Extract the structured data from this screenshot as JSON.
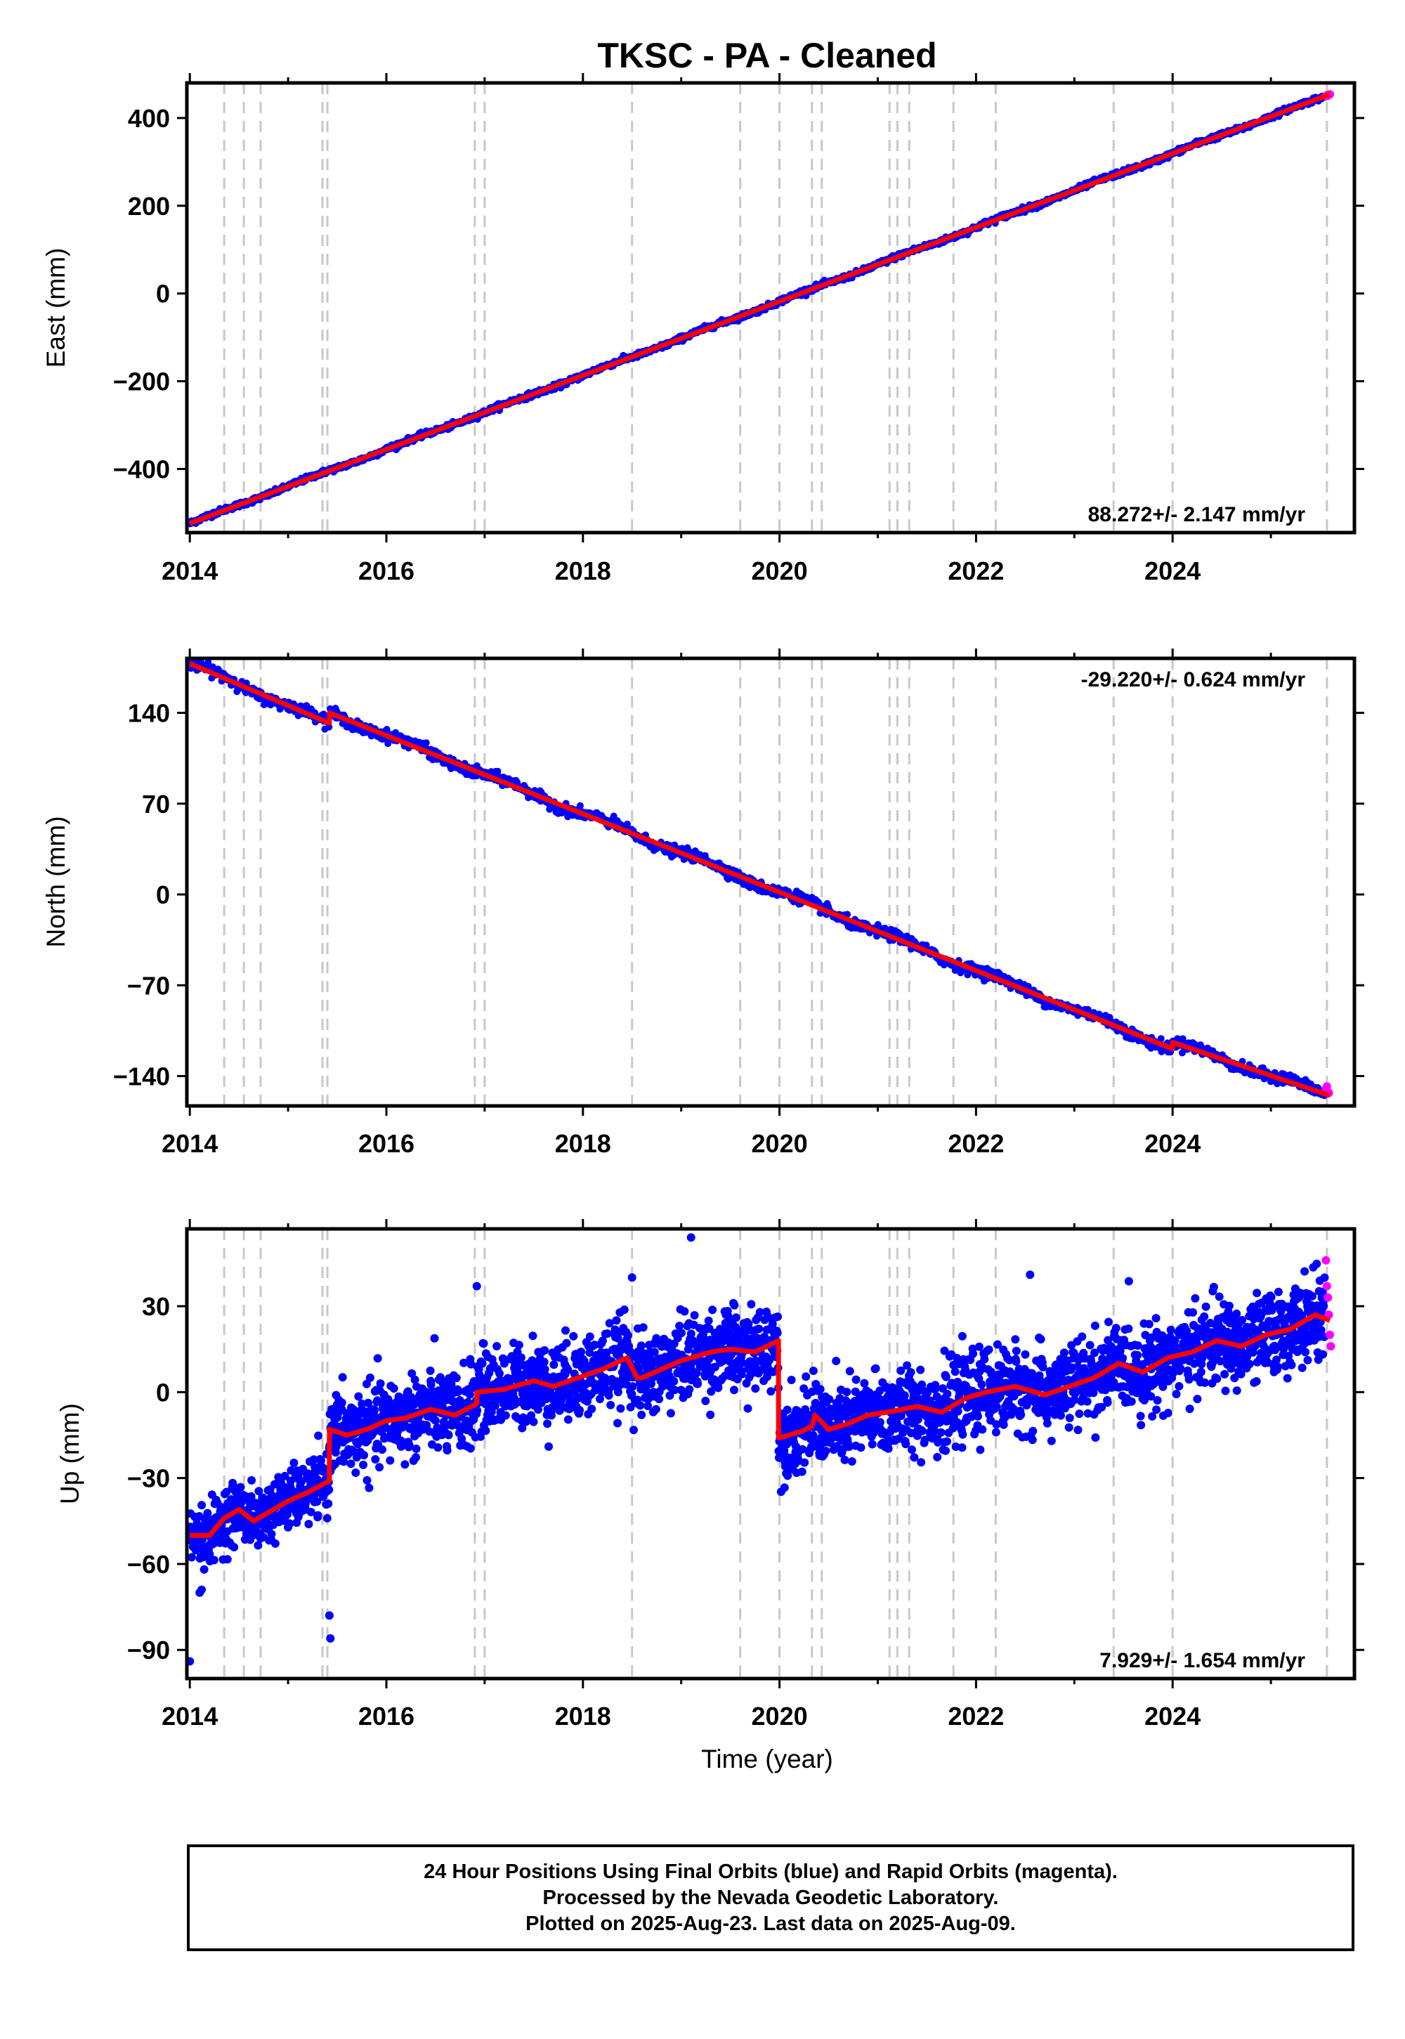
{
  "colors": {
    "final_points": "#0000ff",
    "rapid_points": "#ff00ff",
    "model_line": "#ff0000",
    "event_lines": "#c8c8c8",
    "frame": "#000000"
  },
  "chart_data": [
    {
      "type": "scatter",
      "title": "TKSC  - PA - Cleaned",
      "xlabel": "",
      "ylabel": "East (mm)",
      "xlim": [
        2013.97,
        2025.85
      ],
      "ylim": [
        -545,
        480
      ],
      "xticks": [
        "2014",
        "2016",
        "2018",
        "2020",
        "2022",
        "2024"
      ],
      "yticks": [
        "400",
        "200",
        "0",
        "−200",
        "−400"
      ],
      "rate_label": "88.272+/- 2.147 mm/yr",
      "rate_position": "bottom-right",
      "grid": false,
      "series": [
        {
          "name": "Final Orbits",
          "color": "blue",
          "x_range": [
            2014.0,
            2025.55
          ],
          "linear": {
            "y_start": -524,
            "y_end": 449
          },
          "steps": [],
          "seasonal_amplitude": 2.0,
          "noise": 3.0
        },
        {
          "name": "Rapid Orbits",
          "color": "magenta",
          "x": [
            2025.56,
            2025.57,
            2025.58,
            2025.59,
            2025.6
          ],
          "y": [
            450,
            452,
            451,
            453,
            454
          ]
        }
      ],
      "trend_line": {
        "x": [
          2014.0,
          2025.6
        ],
        "y": [
          -524,
          454
        ]
      },
      "event_years": [
        2014.35,
        2014.55,
        2014.72,
        2015.35,
        2015.4,
        2016.9,
        2017.0,
        2018.5,
        2019.6,
        2020.0,
        2020.33,
        2020.43,
        2021.12,
        2021.2,
        2021.32,
        2021.77,
        2022.2,
        2023.4,
        2024.0,
        2025.57
      ]
    },
    {
      "type": "scatter",
      "title": "",
      "xlabel": "",
      "ylabel": "North (mm)",
      "xlim": [
        2013.97,
        2025.85
      ],
      "ylim": [
        -163,
        182
      ],
      "xticks": [
        "2014",
        "2016",
        "2018",
        "2020",
        "2022",
        "2024"
      ],
      "yticks": [
        "140",
        "70",
        "0",
        "−70",
        "−140"
      ],
      "rate_label": "-29.220+/- 0.624 mm/yr",
      "rate_position": "top-right",
      "grid": false,
      "series": [
        {
          "name": "Final Orbits",
          "color": "blue",
          "x_range": [
            2014.0,
            2025.55
          ],
          "linear": {
            "y_start": 178,
            "y_end": -148
          },
          "steps": [
            {
              "x": 2015.42,
              "dy": 8
            },
            {
              "x": 2024.0,
              "dy": 5
            }
          ],
          "seasonal_amplitude": 2.0,
          "noise": 2.0
        },
        {
          "name": "Rapid Orbits",
          "color": "magenta",
          "x": [
            2025.56,
            2025.57,
            2025.58,
            2025.59
          ],
          "y": [
            -150,
            -148,
            -152,
            -153
          ]
        }
      ],
      "trend_line": {
        "x": [
          2014.0,
          2015.42,
          2015.42,
          2024.0,
          2024.0,
          2025.6
        ],
        "y": [
          178,
          132,
          140,
          -119,
          -114,
          -155
        ]
      },
      "event_years": [
        2014.35,
        2014.55,
        2014.72,
        2015.35,
        2015.4,
        2016.9,
        2017.0,
        2018.5,
        2019.6,
        2020.0,
        2020.33,
        2020.43,
        2021.12,
        2021.2,
        2021.32,
        2021.77,
        2022.2,
        2023.4,
        2024.0,
        2025.57
      ]
    },
    {
      "type": "scatter",
      "title": "",
      "xlabel": "Time (year)",
      "ylabel": "Up (mm)",
      "xlim": [
        2013.97,
        2025.85
      ],
      "ylim": [
        -100,
        57
      ],
      "xticks": [
        "2014",
        "2016",
        "2018",
        "2020",
        "2022",
        "2024"
      ],
      "yticks": [
        "30",
        "0",
        "−30",
        "−60",
        "−90"
      ],
      "rate_label": "7.929+/- 1.654 mm/yr",
      "rate_position": "bottom-right",
      "grid": false,
      "series": [
        {
          "name": "Final Orbits",
          "color": "blue",
          "noise": 6.0
        },
        {
          "name": "Rapid Orbits",
          "color": "magenta",
          "x": [
            2025.56,
            2025.57,
            2025.58,
            2025.59,
            2025.6,
            2025.61
          ],
          "y": [
            46,
            37,
            33,
            27,
            20,
            16
          ]
        }
      ],
      "trend_line": {
        "x": [
          2014.0,
          2014.2,
          2014.35,
          2014.5,
          2014.65,
          2014.8,
          2015.0,
          2015.2,
          2015.42,
          2015.42,
          2015.6,
          2015.8,
          2016.0,
          2016.2,
          2016.45,
          2016.7,
          2016.92,
          2016.92,
          2017.2,
          2017.5,
          2017.7,
          2017.95,
          2018.2,
          2018.45,
          2018.55,
          2018.6,
          2018.8,
          2019.0,
          2019.3,
          2019.5,
          2019.75,
          2019.99,
          2019.99,
          2020.2,
          2020.33,
          2020.36,
          2020.5,
          2020.7,
          2020.9,
          2021.1,
          2021.4,
          2021.65,
          2021.9,
          2022.1,
          2022.4,
          2022.7,
          2022.95,
          2023.2,
          2023.45,
          2023.7,
          2023.95,
          2024.2,
          2024.45,
          2024.7,
          2024.95,
          2025.2,
          2025.45,
          2025.6
        ],
        "y": [
          -50,
          -50,
          -44,
          -41,
          -45,
          -42,
          -38,
          -35,
          -31,
          -13,
          -15,
          -13,
          -10,
          -9,
          -6,
          -8,
          -4,
          0,
          1,
          4,
          2,
          5,
          8,
          12,
          5,
          5,
          8,
          11,
          14,
          15,
          14,
          18,
          -16,
          -14,
          -12,
          -8,
          -13,
          -11,
          -8,
          -7,
          -5,
          -7,
          -2,
          0,
          2,
          -1,
          2,
          5,
          10,
          7,
          12,
          14,
          18,
          16,
          20,
          22,
          27,
          25
        ]
      },
      "segments": [
        {
          "x0": 2014.0,
          "x1": 2015.42,
          "spread": 5
        },
        {
          "x0": 2015.42,
          "x1": 2019.99,
          "spread": 7
        },
        {
          "x0": 2019.99,
          "x1": 2025.55,
          "spread": 7
        }
      ],
      "outliers": {
        "x": [
          2014.0,
          2015.42,
          2015.43,
          2014.1,
          2014.12,
          2016.92,
          2019.1,
          2022.55,
          2018.5
        ],
        "y": [
          -94,
          -78,
          -86,
          -70,
          -69,
          37,
          54,
          41,
          40
        ]
      },
      "event_years": [
        2014.35,
        2014.55,
        2014.72,
        2015.35,
        2015.4,
        2016.9,
        2017.0,
        2018.5,
        2019.6,
        2020.0,
        2020.33,
        2020.43,
        2021.12,
        2021.2,
        2021.32,
        2021.77,
        2022.2,
        2023.4,
        2024.0,
        2025.57
      ]
    }
  ],
  "caption": {
    "line1": "24 Hour Positions Using Final Orbits (blue) and Rapid Orbits (magenta).",
    "line2": "Processed by the Nevada Geodetic Laboratory.",
    "line3": "Plotted on 2025-Aug-23. Last data on 2025-Aug-09."
  }
}
